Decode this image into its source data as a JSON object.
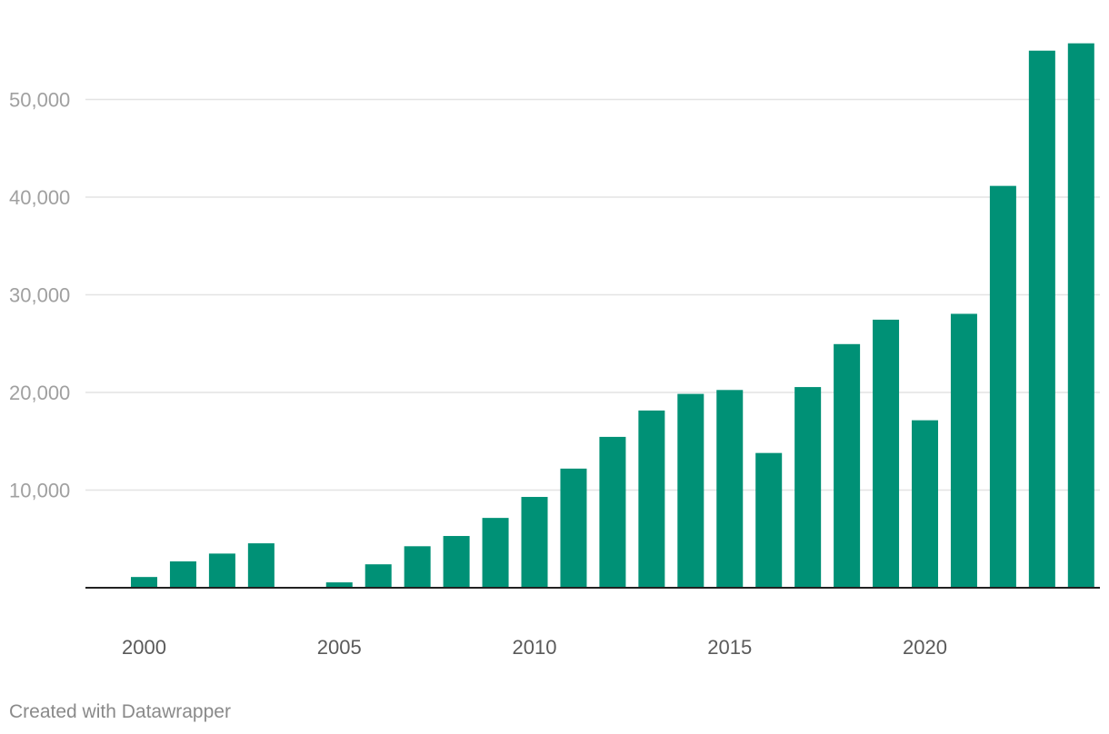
{
  "chart_data": {
    "type": "bar",
    "title": "",
    "xlabel": "",
    "ylabel": "",
    "x": [
      1999,
      2000,
      2001,
      2002,
      2003,
      2004,
      2005,
      2006,
      2007,
      2008,
      2009,
      2010,
      2011,
      2012,
      2013,
      2014,
      2015,
      2016,
      2017,
      2018,
      2019,
      2020,
      2021,
      2022,
      2023,
      2024
    ],
    "values": [
      0,
      1100,
      2700,
      3500,
      4550,
      0,
      550,
      2400,
      4250,
      5300,
      7150,
      9300,
      12200,
      15450,
      18150,
      19850,
      20250,
      13800,
      20550,
      24950,
      27450,
      17150,
      28050,
      41150,
      55000,
      55750
    ],
    "xlim": [
      1998.5,
      2024.5
    ],
    "ylim": [
      0,
      58000
    ],
    "x_ticks": [
      2000,
      2005,
      2010,
      2015,
      2020
    ],
    "x_tick_labels": [
      "2000",
      "2005",
      "2010",
      "2015",
      "2020"
    ],
    "y_ticks": [
      10000,
      20000,
      30000,
      40000,
      50000
    ],
    "y_tick_labels": [
      "10,000",
      "20,000",
      "30,000",
      "40,000",
      "50,000"
    ],
    "grid": true,
    "legend": "none",
    "bar_color": "#009176",
    "grid_color": "#e3e3e3",
    "baseline_color": "#222222"
  },
  "footer": {
    "credit": "Created with Datawrapper"
  }
}
